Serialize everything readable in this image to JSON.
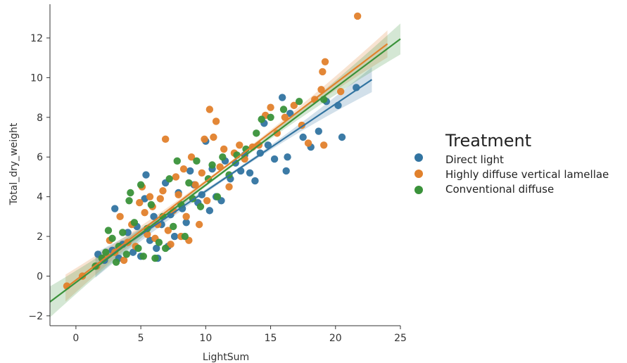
{
  "chart_data": {
    "type": "scatter",
    "xlabel": "LightSum",
    "ylabel": "Total_dry_weight",
    "xlim": [
      -2,
      25
    ],
    "ylim": [
      -2.5,
      13.7
    ],
    "xticks": [
      0,
      5,
      10,
      15,
      20,
      25
    ],
    "yticks": [
      -2,
      0,
      2,
      4,
      6,
      8,
      10,
      12
    ],
    "grid": false,
    "legend": {
      "title": "Treatment",
      "placement": "right",
      "entries": [
        "Direct light",
        "Highly diffuse vertical lamellae",
        "Conventional diffuse"
      ]
    },
    "series": [
      {
        "name": "Direct light",
        "color": "#3274a1",
        "regression": {
          "x": [
            1.5,
            22.8
          ],
          "y": [
            0.55,
            9.9
          ],
          "ci": 0.55
        },
        "points": [
          [
            1.7,
            1.1
          ],
          [
            2.2,
            0.8
          ],
          [
            2.8,
            1.3
          ],
          [
            3.0,
            3.4
          ],
          [
            3.3,
            0.9
          ],
          [
            3.6,
            1.6
          ],
          [
            4.0,
            2.2
          ],
          [
            4.4,
            1.2
          ],
          [
            4.7,
            2.5
          ],
          [
            5.0,
            1.0
          ],
          [
            5.3,
            3.9
          ],
          [
            5.4,
            5.1
          ],
          [
            5.7,
            1.8
          ],
          [
            6.0,
            3.0
          ],
          [
            6.2,
            1.4
          ],
          [
            6.3,
            0.9
          ],
          [
            6.6,
            2.6
          ],
          [
            6.9,
            4.7
          ],
          [
            7.1,
            1.5
          ],
          [
            7.3,
            3.1
          ],
          [
            7.6,
            2.0
          ],
          [
            7.9,
            4.2
          ],
          [
            8.2,
            3.4
          ],
          [
            8.5,
            2.7
          ],
          [
            8.8,
            5.3
          ],
          [
            9.1,
            4.6
          ],
          [
            9.4,
            3.7
          ],
          [
            9.7,
            4.1
          ],
          [
            10.0,
            6.8
          ],
          [
            10.3,
            3.3
          ],
          [
            10.5,
            5.4
          ],
          [
            10.8,
            4.0
          ],
          [
            11.2,
            3.8
          ],
          [
            11.5,
            5.8
          ],
          [
            11.9,
            4.9
          ],
          [
            12.3,
            5.7
          ],
          [
            12.7,
            5.3
          ],
          [
            13.0,
            6.1
          ],
          [
            13.4,
            5.2
          ],
          [
            13.8,
            4.8
          ],
          [
            14.2,
            6.2
          ],
          [
            14.5,
            7.7
          ],
          [
            14.8,
            6.6
          ],
          [
            15.3,
            5.9
          ],
          [
            15.9,
            9.0
          ],
          [
            16.3,
            6.0
          ],
          [
            16.5,
            8.2
          ],
          [
            16.2,
            5.3
          ],
          [
            17.5,
            7.0
          ],
          [
            18.1,
            6.5
          ],
          [
            18.7,
            7.3
          ],
          [
            19.3,
            8.8
          ],
          [
            20.2,
            8.6
          ],
          [
            20.5,
            7.0
          ],
          [
            21.6,
            9.5
          ]
        ]
      },
      {
        "name": "Highly diffuse vertical lamellae",
        "color": "#e1812c",
        "regression": {
          "x": [
            -0.8,
            24.0
          ],
          "y": [
            -0.6,
            11.7
          ],
          "ci": 0.6
        },
        "points": [
          [
            -0.7,
            -0.5
          ],
          [
            0.5,
            0.0
          ],
          [
            1.6,
            0.5
          ],
          [
            2.1,
            0.9
          ],
          [
            2.6,
            1.8
          ],
          [
            3.0,
            1.2
          ],
          [
            3.4,
            3.0
          ],
          [
            3.7,
            0.8
          ],
          [
            4.0,
            1.7
          ],
          [
            4.3,
            2.6
          ],
          [
            4.6,
            1.5
          ],
          [
            4.9,
            3.7
          ],
          [
            5.1,
            4.5
          ],
          [
            5.3,
            3.2
          ],
          [
            5.5,
            2.1
          ],
          [
            5.7,
            4.0
          ],
          [
            5.9,
            3.5
          ],
          [
            6.1,
            1.9
          ],
          [
            6.3,
            2.6
          ],
          [
            6.5,
            3.9
          ],
          [
            6.7,
            4.3
          ],
          [
            6.9,
            6.9
          ],
          [
            7.1,
            2.3
          ],
          [
            7.3,
            1.6
          ],
          [
            7.5,
            3.3
          ],
          [
            7.7,
            5.0
          ],
          [
            7.9,
            4.1
          ],
          [
            8.1,
            2.0
          ],
          [
            8.3,
            5.4
          ],
          [
            8.5,
            3.0
          ],
          [
            8.7,
            1.8
          ],
          [
            8.9,
            6.0
          ],
          [
            9.2,
            4.6
          ],
          [
            9.5,
            2.6
          ],
          [
            9.7,
            5.2
          ],
          [
            9.9,
            6.9
          ],
          [
            10.1,
            3.8
          ],
          [
            10.3,
            8.4
          ],
          [
            10.6,
            7.0
          ],
          [
            10.8,
            7.8
          ],
          [
            11.1,
            5.5
          ],
          [
            11.4,
            6.4
          ],
          [
            11.8,
            4.5
          ],
          [
            12.2,
            6.2
          ],
          [
            12.6,
            6.6
          ],
          [
            13.0,
            5.9
          ],
          [
            13.6,
            6.5
          ],
          [
            14.1,
            6.6
          ],
          [
            14.6,
            8.1
          ],
          [
            15.0,
            8.5
          ],
          [
            15.5,
            7.2
          ],
          [
            16.1,
            8.0
          ],
          [
            16.8,
            8.6
          ],
          [
            17.4,
            7.6
          ],
          [
            17.9,
            6.7
          ],
          [
            18.4,
            8.9
          ],
          [
            18.9,
            9.4
          ],
          [
            19.0,
            10.3
          ],
          [
            19.2,
            10.8
          ],
          [
            19.1,
            6.6
          ],
          [
            20.4,
            9.3
          ],
          [
            21.7,
            13.1
          ]
        ]
      },
      {
        "name": "Conventional diffuse",
        "color": "#3a923a",
        "regression": {
          "x": [
            -2.0,
            25.0
          ],
          "y": [
            -1.3,
            11.95
          ],
          "ci": 0.7
        },
        "points": [
          [
            1.5,
            0.5
          ],
          [
            2.0,
            0.9
          ],
          [
            2.3,
            1.2
          ],
          [
            2.5,
            2.3
          ],
          [
            2.8,
            1.9
          ],
          [
            3.1,
            0.7
          ],
          [
            3.3,
            1.5
          ],
          [
            3.6,
            2.2
          ],
          [
            3.9,
            1.1
          ],
          [
            4.1,
            3.8
          ],
          [
            4.2,
            4.2
          ],
          [
            4.5,
            2.7
          ],
          [
            4.8,
            1.4
          ],
          [
            5.0,
            4.6
          ],
          [
            5.2,
            1.0
          ],
          [
            5.5,
            2.4
          ],
          [
            5.8,
            3.6
          ],
          [
            6.1,
            0.9
          ],
          [
            6.4,
            1.7
          ],
          [
            6.7,
            3.0
          ],
          [
            6.9,
            1.4
          ],
          [
            7.2,
            4.9
          ],
          [
            7.5,
            2.5
          ],
          [
            7.8,
            5.8
          ],
          [
            8.1,
            3.6
          ],
          [
            8.4,
            2.0
          ],
          [
            8.7,
            4.7
          ],
          [
            9.0,
            3.9
          ],
          [
            9.3,
            5.8
          ],
          [
            9.6,
            3.5
          ],
          [
            10.2,
            4.9
          ],
          [
            10.5,
            5.6
          ],
          [
            10.9,
            4.0
          ],
          [
            11.3,
            6.0
          ],
          [
            11.8,
            5.1
          ],
          [
            12.4,
            6.1
          ],
          [
            13.1,
            6.4
          ],
          [
            13.9,
            7.2
          ],
          [
            14.3,
            7.9
          ],
          [
            15.0,
            8.0
          ],
          [
            16.0,
            8.4
          ],
          [
            17.2,
            8.8
          ],
          [
            19.1,
            8.9
          ]
        ]
      }
    ]
  }
}
